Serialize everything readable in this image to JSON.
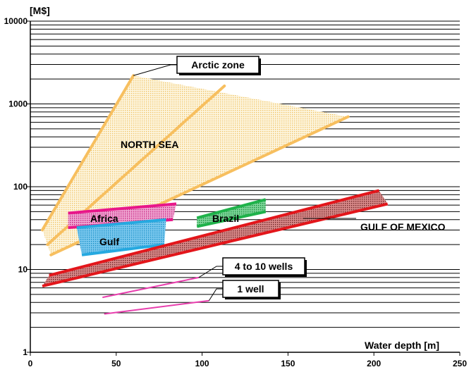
{
  "chart_data": {
    "type": "area",
    "ylabel": "[M$]",
    "xlabel": "Water depth [m]",
    "y_scale": "log",
    "xlim": [
      0,
      250
    ],
    "ylim": [
      1,
      10000
    ],
    "x_ticks": [
      "0",
      "50",
      "100",
      "150",
      "200",
      "250"
    ],
    "y_ticks": [
      "1",
      "10",
      "100",
      "1000",
      "10000"
    ],
    "grid": "horizontal",
    "regions": [
      {
        "name": "NORTH SEA",
        "label": "NORTH SEA",
        "color": "#f2c96a",
        "polygon": [
          [
            7,
            30
          ],
          [
            60,
            2200
          ],
          [
            185,
            700
          ],
          [
            12,
            15
          ]
        ],
        "lines": [
          [
            [
              7,
              30
            ],
            [
              60,
              2200
            ]
          ],
          [
            [
              10,
              20
            ],
            [
              113,
              1650
            ]
          ],
          [
            [
              12,
              15
            ],
            [
              185,
              700
            ]
          ]
        ]
      },
      {
        "name": "Africa",
        "label": "Africa",
        "color": "#e8178a",
        "polygon": [
          [
            22,
            48
          ],
          [
            85,
            62
          ],
          [
            83,
            40
          ],
          [
            22,
            32
          ]
        ]
      },
      {
        "name": "Gulf",
        "label": "Gulf",
        "color": "#26a9e0",
        "polygon": [
          [
            27,
            32
          ],
          [
            79,
            40
          ],
          [
            78,
            20
          ],
          [
            30,
            15
          ]
        ]
      },
      {
        "name": "Brazil",
        "label": "Brazil",
        "color": "#1fb24a",
        "polygon": [
          [
            97,
            42
          ],
          [
            137,
            70
          ],
          [
            137,
            50
          ],
          [
            97,
            33
          ]
        ]
      },
      {
        "name": "GULF OF MEXICO",
        "label": "GULF OF MEXICO",
        "color": "#e3161b",
        "polygon": [
          [
            11,
            8.5
          ],
          [
            203,
            90
          ],
          [
            208,
            62
          ],
          [
            7,
            6.3
          ]
        ]
      }
    ],
    "callouts": [
      {
        "label": "Arctic zone",
        "target": [
          60,
          2200
        ]
      },
      {
        "label": "4 to 10 wells",
        "line": [
          [
            42,
            4.6
          ],
          [
            98,
            8.0
          ]
        ],
        "target": [
          98,
          8.0
        ]
      },
      {
        "label": "1 well",
        "line": [
          [
            43,
            2.9
          ],
          [
            104,
            4.2
          ]
        ],
        "target": [
          104,
          4.2
        ]
      }
    ]
  }
}
